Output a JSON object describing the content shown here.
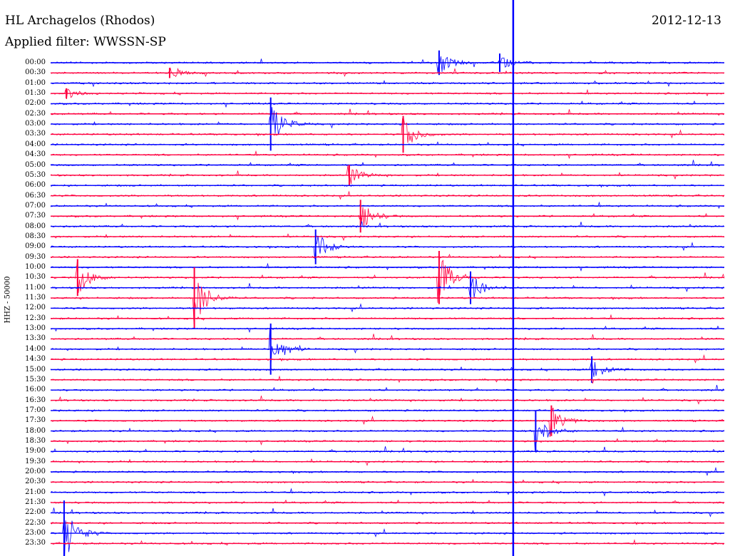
{
  "header": {
    "station": "HL Archagelos (Rhodos)",
    "date": "2012-12-13",
    "filter": "Applied filter: WWSSN-SP"
  },
  "colors": {
    "odd_rows": "#0000ff",
    "even_rows": "#ff0040"
  },
  "chart_data": {
    "type": "helicorder",
    "ylabel": "HHZ - 50000",
    "rows": [
      "00:00",
      "00:30",
      "01:00",
      "01:30",
      "02:00",
      "02:30",
      "03:00",
      "03:30",
      "04:00",
      "04:30",
      "05:00",
      "05:30",
      "06:00",
      "06:30",
      "07:00",
      "07:30",
      "08:00",
      "08:30",
      "09:00",
      "09:30",
      "10:00",
      "10:30",
      "11:00",
      "11:30",
      "12:00",
      "12:30",
      "13:00",
      "13:30",
      "14:00",
      "14:30",
      "15:00",
      "15:30",
      "16:00",
      "16:30",
      "17:00",
      "17:30",
      "18:00",
      "18:30",
      "19:00",
      "19:30",
      "20:00",
      "20:30",
      "21:00",
      "21:30",
      "22:00",
      "22:30",
      "23:00",
      "23:30"
    ],
    "x_range_minutes": [
      0,
      30
    ],
    "events": [
      {
        "row": "00:00",
        "minute": 17.3,
        "amp": 1.2
      },
      {
        "row": "00:00",
        "minute": 20.0,
        "amp": 0.9
      },
      {
        "row": "00:30",
        "minute": 5.3,
        "amp": 0.5
      },
      {
        "row": "01:30",
        "minute": 0.7,
        "amp": 0.5
      },
      {
        "row": "03:00",
        "minute": 9.8,
        "amp": 2.6
      },
      {
        "row": "03:30",
        "minute": 15.7,
        "amp": 1.8
      },
      {
        "row": "05:30",
        "minute": 13.3,
        "amp": 1.0
      },
      {
        "row": "07:30",
        "minute": 13.8,
        "amp": 1.6
      },
      {
        "row": "09:00",
        "minute": 11.8,
        "amp": 1.7
      },
      {
        "row": "10:30",
        "minute": 1.2,
        "amp": 1.8
      },
      {
        "row": "10:30",
        "minute": 17.3,
        "amp": 2.6
      },
      {
        "row": "11:00",
        "minute": 18.7,
        "amp": 1.6
      },
      {
        "row": "11:30",
        "minute": 6.4,
        "amp": 3.0
      },
      {
        "row": "14:00",
        "minute": 9.8,
        "amp": 2.5
      },
      {
        "row": "15:00",
        "minute": 24.1,
        "amp": 1.3
      },
      {
        "row": "17:30",
        "minute": 22.3,
        "amp": 1.5
      },
      {
        "row": "18:00",
        "minute": 21.6,
        "amp": 2.0
      },
      {
        "row": "23:00",
        "minute": 0.6,
        "amp": 3.2
      }
    ],
    "marker_minute": 20.6
  }
}
